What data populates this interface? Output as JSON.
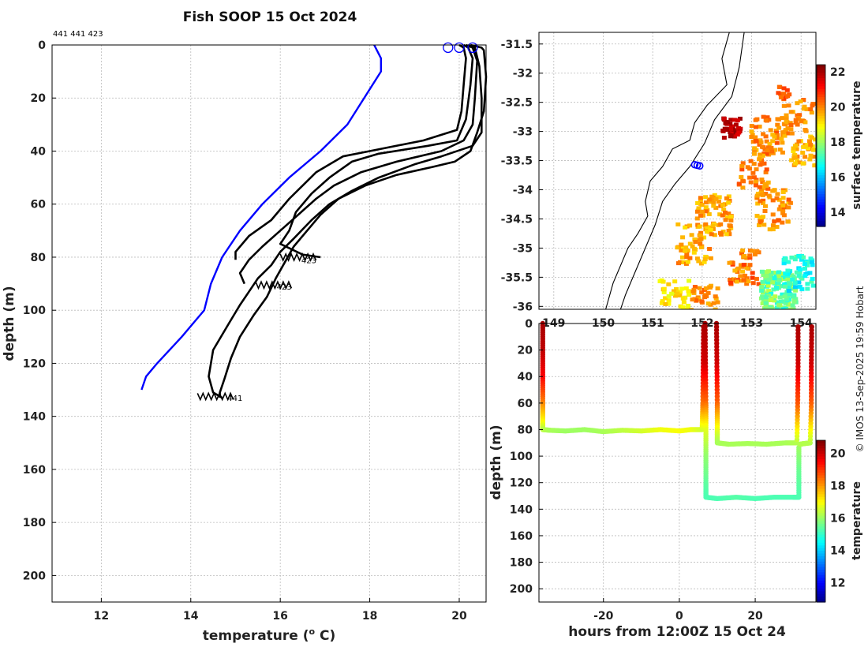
{
  "chart_data": [
    {
      "id": "profiles",
      "type": "line",
      "title": "Fish SOOP 15 Oct 2024",
      "xlabel": "temperature (° C)",
      "xlabel_main": "temperature (",
      "xlabel_sup": "o",
      "xlabel_end": " C)",
      "ylabel": "depth (m)",
      "xlim": [
        10.9,
        20.6
      ],
      "ylim": [
        210,
        0
      ],
      "xticks": [
        12,
        14,
        16,
        18,
        20
      ],
      "yticks": [
        0,
        20,
        40,
        60,
        80,
        100,
        120,
        140,
        160,
        180,
        200
      ],
      "grid": true,
      "header_note": "441 441 423",
      "end_labels": [
        {
          "text": "441",
          "temperature": 14.75,
          "depth": 133
        },
        {
          "text": "423",
          "temperature": 16.4,
          "depth": 81
        },
        {
          "text": "423",
          "temperature": 15.85,
          "depth": 91
        }
      ],
      "surface_markers": {
        "color": "#0000ff",
        "temperatures": [
          19.75,
          20.0,
          20.3
        ],
        "depth": 1
      },
      "series": [
        {
          "name": "climatology",
          "color": "#0000ff",
          "points": [
            [
              18.1,
              0
            ],
            [
              18.25,
              5
            ],
            [
              18.25,
              10
            ],
            [
              17.5,
              30
            ],
            [
              16.9,
              40
            ],
            [
              16.2,
              50
            ],
            [
              15.6,
              60
            ],
            [
              15.1,
              70
            ],
            [
              14.7,
              80
            ],
            [
              14.45,
              90
            ],
            [
              14.3,
              100
            ],
            [
              13.8,
              110
            ],
            [
              13.25,
              120
            ],
            [
              13.0,
              125
            ],
            [
              12.9,
              130
            ]
          ]
        },
        {
          "name": "profile-1",
          "color": "#000000",
          "points": [
            [
              20.0,
              0
            ],
            [
              20.1,
              1
            ],
            [
              20.15,
              5
            ],
            [
              20.1,
              15
            ],
            [
              20.05,
              25
            ],
            [
              19.95,
              32
            ],
            [
              19.2,
              36
            ],
            [
              18.0,
              40
            ],
            [
              17.4,
              42
            ],
            [
              16.8,
              48
            ],
            [
              16.2,
              58
            ],
            [
              15.8,
              66
            ],
            [
              15.3,
              72
            ],
            [
              15.0,
              78
            ],
            [
              15.0,
              81
            ]
          ]
        },
        {
          "name": "profile-2",
          "color": "#000000",
          "points": [
            [
              20.1,
              0
            ],
            [
              20.2,
              1
            ],
            [
              20.3,
              5
            ],
            [
              20.25,
              15
            ],
            [
              20.15,
              28
            ],
            [
              19.95,
              36
            ],
            [
              19.3,
              38
            ],
            [
              18.2,
              41
            ],
            [
              17.6,
              44
            ],
            [
              17.1,
              50
            ],
            [
              16.7,
              56
            ],
            [
              16.35,
              63
            ],
            [
              16.2,
              70
            ],
            [
              16.0,
              75
            ],
            [
              16.5,
              79
            ],
            [
              16.9,
              80
            ]
          ]
        },
        {
          "name": "profile-3",
          "color": "#000000",
          "points": [
            [
              20.15,
              0
            ],
            [
              20.3,
              1
            ],
            [
              20.4,
              6
            ],
            [
              20.35,
              20
            ],
            [
              20.3,
              30
            ],
            [
              20.1,
              36
            ],
            [
              19.6,
              40
            ],
            [
              18.6,
              44
            ],
            [
              17.8,
              48
            ],
            [
              17.2,
              53
            ],
            [
              16.8,
              58
            ],
            [
              16.4,
              64
            ],
            [
              16.0,
              70
            ],
            [
              15.6,
              76
            ],
            [
              15.3,
              81
            ],
            [
              15.1,
              86
            ],
            [
              15.2,
              90
            ]
          ]
        },
        {
          "name": "profile-4",
          "color": "#000000",
          "points": [
            [
              20.2,
              0
            ],
            [
              20.35,
              1
            ],
            [
              20.45,
              8
            ],
            [
              20.5,
              20
            ],
            [
              20.5,
              33
            ],
            [
              20.3,
              38
            ],
            [
              19.6,
              42
            ],
            [
              19.0,
              45
            ],
            [
              18.2,
              50
            ],
            [
              17.6,
              55
            ],
            [
              17.1,
              60
            ],
            [
              16.7,
              66
            ],
            [
              16.3,
              73
            ],
            [
              16.0,
              78
            ],
            [
              15.8,
              83
            ],
            [
              15.5,
              88
            ],
            [
              15.3,
              93
            ],
            [
              15.1,
              98
            ],
            [
              14.85,
              105
            ],
            [
              14.5,
              115
            ],
            [
              14.4,
              125
            ],
            [
              14.5,
              131
            ],
            [
              14.7,
              133
            ]
          ]
        },
        {
          "name": "profile-5",
          "color": "#000000",
          "points": [
            [
              20.25,
              0
            ],
            [
              20.5,
              1
            ],
            [
              20.55,
              2
            ],
            [
              20.6,
              12
            ],
            [
              20.55,
              25
            ],
            [
              20.4,
              33
            ],
            [
              20.25,
              40
            ],
            [
              19.9,
              44
            ],
            [
              19.4,
              46
            ],
            [
              18.6,
              49
            ],
            [
              17.9,
              53
            ],
            [
              17.3,
              58
            ],
            [
              16.9,
              64
            ],
            [
              16.6,
              70
            ],
            [
              16.3,
              76
            ],
            [
              16.1,
              82
            ],
            [
              15.9,
              88
            ],
            [
              15.7,
              95
            ],
            [
              15.4,
              102
            ],
            [
              15.1,
              110
            ],
            [
              14.9,
              118
            ],
            [
              14.75,
              126
            ],
            [
              14.65,
              131
            ],
            [
              14.65,
              133
            ]
          ]
        }
      ]
    },
    {
      "id": "map",
      "type": "heatmap",
      "xlim": [
        148.7,
        154.3
      ],
      "ylim": [
        -36.05,
        -31.3
      ],
      "xticks": [
        149,
        150,
        151,
        152,
        153,
        154
      ],
      "yticks": [
        -31.5,
        -32,
        -32.5,
        -33,
        -33.5,
        -34,
        -34.5,
        -35,
        -35.5,
        -36
      ],
      "colorbar_label": "surface temperature",
      "colorbar_range": [
        13.2,
        22.4
      ],
      "colorbar_ticks": [
        14,
        16,
        18,
        20,
        22
      ],
      "position_markers": [
        [
          151.85,
          -33.57
        ],
        [
          151.9,
          -33.58
        ],
        [
          151.95,
          -33.59
        ]
      ]
    },
    {
      "id": "timeseries",
      "type": "scatter",
      "xlabel": "hours from 12:00Z 15 Oct 24",
      "ylabel": "depth (m)",
      "xlim": [
        -37,
        36
      ],
      "ylim": [
        210,
        0
      ],
      "xticks": [
        -20,
        0,
        20
      ],
      "yticks": [
        0,
        20,
        40,
        60,
        80,
        100,
        120,
        140,
        160,
        180,
        200
      ],
      "colorbar_label": "temperature",
      "colorbar_range": [
        10.8,
        20.8
      ],
      "colorbar_ticks": [
        12,
        14,
        16,
        18,
        20
      ],
      "series": [
        {
          "name": "tow-1",
          "points": [
            [
              -36,
              0,
              20.4
            ],
            [
              -36,
              20,
              20.2
            ],
            [
              -36,
              40,
              19.6
            ],
            [
              -36,
              60,
              18.3
            ],
            [
              -36,
              75,
              17.0
            ],
            [
              -36,
              80,
              16.4
            ],
            [
              -34,
              80.5,
              16.2
            ],
            [
              -30,
              81,
              16.1
            ],
            [
              -25,
              80,
              16.1
            ],
            [
              -20,
              81.5,
              16.2
            ],
            [
              -15,
              80.5,
              16.4
            ],
            [
              -10,
              81,
              16.6
            ],
            [
              -5,
              80,
              16.9
            ],
            [
              0,
              81,
              17.0
            ],
            [
              3,
              80,
              16.9
            ],
            [
              6,
              80,
              16.6
            ],
            [
              6.2,
              60,
              18.4
            ],
            [
              6.3,
              30,
              19.9
            ],
            [
              6.4,
              0,
              20.4
            ]
          ]
        },
        {
          "name": "tow-2",
          "points": [
            [
              6.8,
              0,
              20.4
            ],
            [
              6.9,
              30,
              20.0
            ],
            [
              7,
              60,
              18.5
            ],
            [
              7,
              80,
              16.8
            ],
            [
              7,
              100,
              16.0
            ],
            [
              7,
              120,
              15.5
            ],
            [
              7,
              131,
              15.3
            ],
            [
              10,
              132,
              15.3
            ],
            [
              15,
              131,
              15.4
            ],
            [
              20,
              132,
              15.3
            ],
            [
              25,
              131,
              15.3
            ],
            [
              30,
              131,
              15.3
            ],
            [
              31.5,
              131,
              15.3
            ],
            [
              31.5,
              110,
              15.6
            ],
            [
              31.5,
              92,
              16.1
            ]
          ]
        },
        {
          "name": "tow-3",
          "points": [
            [
              9.8,
              0,
              20.4
            ],
            [
              9.9,
              30,
              20.0
            ],
            [
              10,
              60,
              18.6
            ],
            [
              10,
              80,
              16.9
            ],
            [
              10,
              90,
              16.2
            ],
            [
              13,
              91,
              16.2
            ],
            [
              18,
              90.5,
              16.2
            ],
            [
              23,
              91,
              16.2
            ],
            [
              28,
              90,
              16.2
            ],
            [
              31,
              90,
              16.3
            ],
            [
              31.2,
              60,
              18.7
            ],
            [
              31.3,
              30,
              20.0
            ],
            [
              31.3,
              0,
              20.4
            ]
          ]
        },
        {
          "name": "tow-4",
          "points": [
            [
              31.8,
              91,
              16.3
            ],
            [
              33,
              90.5,
              16.3
            ],
            [
              34.5,
              90,
              16.3
            ],
            [
              34.8,
              60,
              18.6
            ],
            [
              34.8,
              30,
              20.0
            ],
            [
              34.9,
              0,
              20.4
            ]
          ]
        }
      ]
    }
  ],
  "credit": "© IMOS 13-Sep-2025 19:59 Hobart"
}
